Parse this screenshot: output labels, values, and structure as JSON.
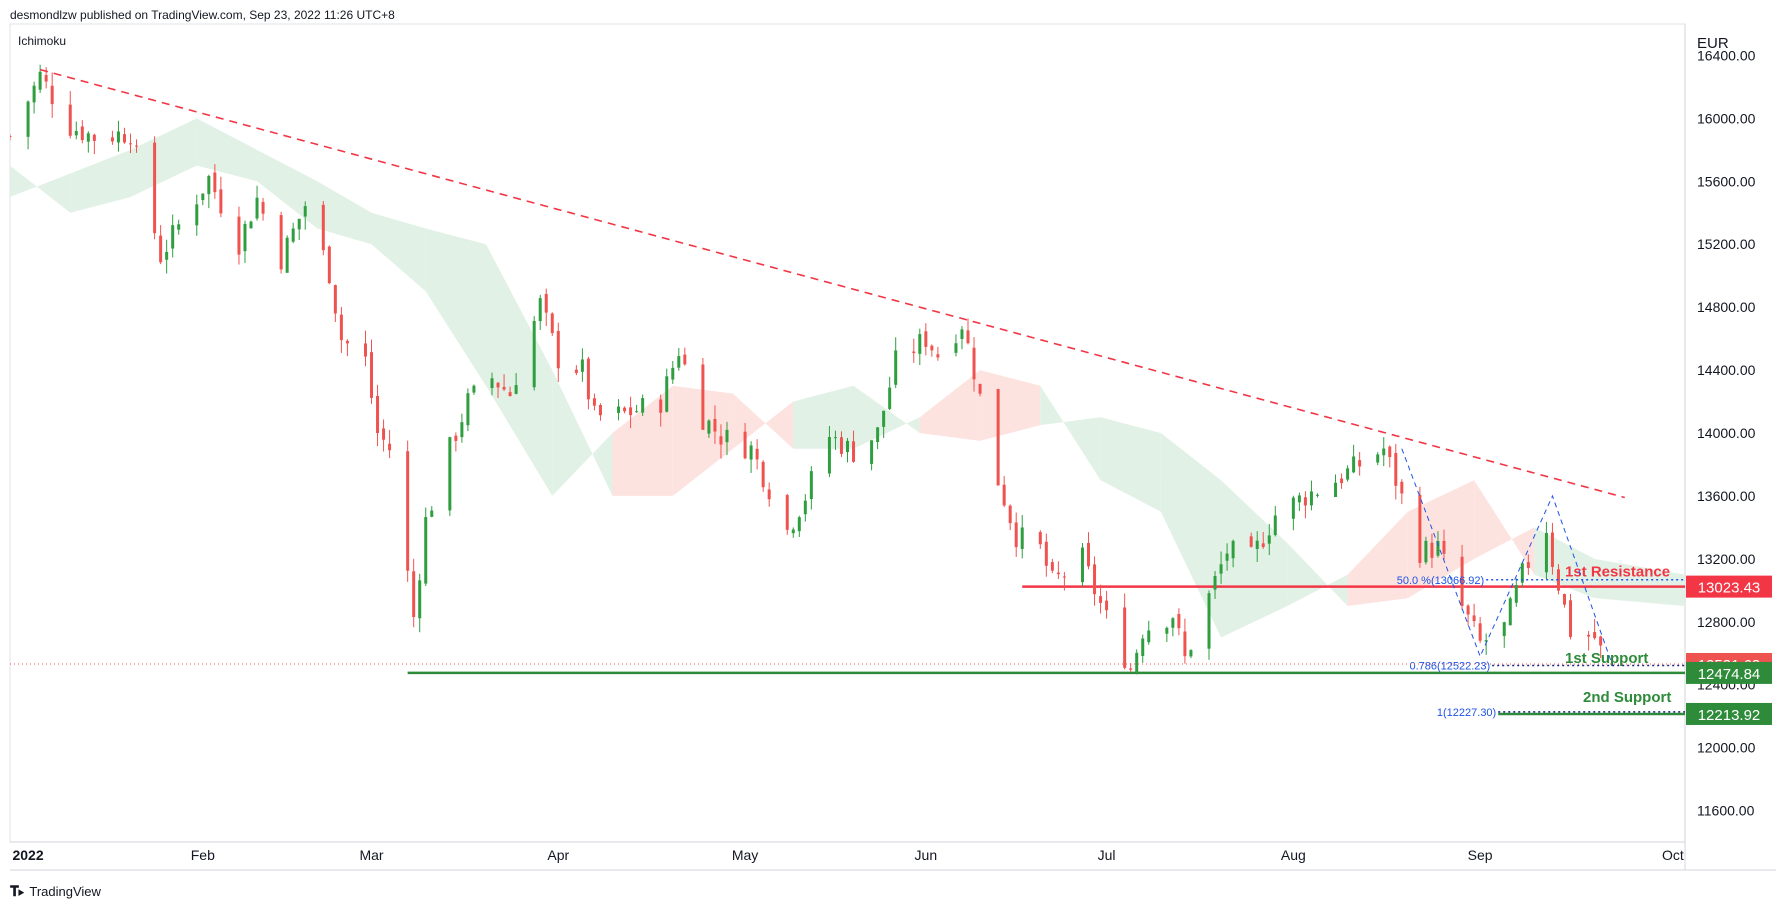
{
  "header": {
    "published_line": "desmondlzw published on TradingView.com, Sep 23, 2022 11:26 UTC+8",
    "indicator": "Ichimoku",
    "currency": "EUR"
  },
  "footer": {
    "brand": "TradingView"
  },
  "colors": {
    "up": "#26a69a",
    "up_candle": "#2e9e3f",
    "down": "#ef5350",
    "resistance": "#f23645",
    "support": "#2e8b3a",
    "fib": "#1e53e5",
    "cloud_bull": "#dff0e3",
    "cloud_bear": "#fde0dd"
  },
  "chart_data": {
    "type": "candlestick",
    "title": "",
    "y_unit": "EUR",
    "ylim": [
      11400,
      16600
    ],
    "y_ticks": [
      11600,
      12000,
      12400,
      12800,
      13200,
      13600,
      14000,
      14400,
      14800,
      15200,
      15600,
      16000,
      16400
    ],
    "y_tick_labels": [
      "11600.00",
      "12000.00",
      "12400.00",
      "12800.00",
      "13200.00",
      "13600.00",
      "14000.00",
      "14400.00",
      "14800.00",
      "15200.00",
      "15600.00",
      "16000.00",
      "16400.00"
    ],
    "x_tick_labels": [
      "2022",
      "Feb",
      "Mar",
      "Apr",
      "May",
      "Jun",
      "Jul",
      "Aug",
      "Sep",
      "Oct"
    ],
    "x_tick_dates": [
      "2022-01-03",
      "2022-02-01",
      "2022-03-01",
      "2022-04-01",
      "2022-05-02",
      "2022-06-01",
      "2022-07-01",
      "2022-08-01",
      "2022-09-01",
      "2022-10-03"
    ],
    "x_range": [
      "2021-12-31",
      "2022-10-05"
    ],
    "price_path": [
      [
        "2021-12-31",
        15884
      ],
      [
        "2022-01-05",
        16271
      ],
      [
        "2022-01-10",
        15950
      ],
      [
        "2022-01-14",
        15880
      ],
      [
        "2022-01-20",
        15910
      ],
      [
        "2022-01-25",
        15123
      ],
      [
        "2022-01-28",
        15318
      ],
      [
        "2022-02-02",
        15620
      ],
      [
        "2022-02-07",
        15210
      ],
      [
        "2022-02-10",
        15490
      ],
      [
        "2022-02-14",
        15110
      ],
      [
        "2022-02-18",
        15450
      ],
      [
        "2022-02-22",
        15020
      ],
      [
        "2022-02-24",
        14600
      ],
      [
        "2022-02-28",
        14460
      ],
      [
        "2022-03-02",
        14000
      ],
      [
        "2022-03-04",
        13900
      ],
      [
        "2022-03-07",
        13100
      ],
      [
        "2022-03-08",
        12830
      ],
      [
        "2022-03-10",
        13440
      ],
      [
        "2022-03-14",
        13900
      ],
      [
        "2022-03-17",
        14200
      ],
      [
        "2022-03-21",
        14350
      ],
      [
        "2022-03-24",
        14250
      ],
      [
        "2022-03-29",
        14820
      ],
      [
        "2022-04-01",
        14470
      ],
      [
        "2022-04-05",
        14400
      ],
      [
        "2022-04-07",
        14100
      ],
      [
        "2022-04-12",
        14120
      ],
      [
        "2022-04-18",
        14200
      ],
      [
        "2022-04-21",
        14530
      ],
      [
        "2022-04-25",
        14100
      ],
      [
        "2022-04-28",
        13980
      ],
      [
        "2022-05-03",
        13900
      ],
      [
        "2022-05-06",
        13650
      ],
      [
        "2022-05-09",
        13380
      ],
      [
        "2022-05-12",
        13600
      ],
      [
        "2022-05-16",
        13980
      ],
      [
        "2022-05-20",
        13880
      ],
      [
        "2022-05-24",
        14000
      ],
      [
        "2022-05-27",
        14450
      ],
      [
        "2022-06-01",
        14600
      ],
      [
        "2022-06-03",
        14500
      ],
      [
        "2022-06-07",
        14700
      ],
      [
        "2022-06-09",
        14400
      ],
      [
        "2022-06-13",
        13700
      ],
      [
        "2022-06-16",
        13350
      ],
      [
        "2022-06-20",
        13260
      ],
      [
        "2022-06-22",
        13050
      ],
      [
        "2022-06-24",
        13100
      ],
      [
        "2022-06-27",
        13200
      ],
      [
        "2022-06-29",
        13000
      ],
      [
        "2022-07-01",
        12820
      ],
      [
        "2022-07-05",
        12500
      ],
      [
        "2022-07-07",
        12750
      ],
      [
        "2022-07-12",
        12850
      ],
      [
        "2022-07-14",
        12560
      ],
      [
        "2022-07-18",
        12960
      ],
      [
        "2022-07-21",
        13250
      ],
      [
        "2022-07-25",
        13200
      ],
      [
        "2022-07-29",
        13480
      ],
      [
        "2022-08-03",
        13600
      ],
      [
        "2022-08-08",
        13700
      ],
      [
        "2022-08-12",
        13800
      ],
      [
        "2022-08-16",
        13900
      ],
      [
        "2022-08-18",
        13700
      ],
      [
        "2022-08-22",
        13250
      ],
      [
        "2022-08-25",
        13270
      ],
      [
        "2022-08-29",
        12890
      ],
      [
        "2022-09-01",
        12660
      ],
      [
        "2022-09-05",
        12760
      ],
      [
        "2022-09-08",
        13100
      ],
      [
        "2022-09-12",
        13400
      ],
      [
        "2022-09-13",
        13190
      ],
      [
        "2022-09-16",
        12740
      ],
      [
        "2022-09-20",
        12700
      ],
      [
        "2022-09-22",
        12531
      ]
    ],
    "cloud": [
      [
        "2021-12-31",
        15500,
        15700
      ],
      [
        "2022-01-10",
        15650,
        15400
      ],
      [
        "2022-01-20",
        15800,
        15500
      ],
      [
        "2022-01-31",
        16000,
        15700
      ],
      [
        "2022-02-10",
        15800,
        15600
      ],
      [
        "2022-02-20",
        15600,
        15300
      ],
      [
        "2022-03-01",
        15400,
        15200
      ],
      [
        "2022-03-10",
        15300,
        14900
      ],
      [
        "2022-03-20",
        15200,
        14300
      ],
      [
        "2022-03-31",
        14400,
        13600
      ],
      [
        "2022-04-10",
        13600,
        14000
      ],
      [
        "2022-04-20",
        13600,
        14300
      ],
      [
        "2022-04-30",
        13900,
        14250
      ],
      [
        "2022-05-10",
        14200,
        13900
      ],
      [
        "2022-05-20",
        14300,
        13900
      ],
      [
        "2022-05-31",
        14000,
        14100
      ],
      [
        "2022-06-10",
        13950,
        14400
      ],
      [
        "2022-06-20",
        14050,
        14300
      ],
      [
        "2022-06-30",
        14100,
        13700
      ],
      [
        "2022-07-10",
        14000,
        13500
      ],
      [
        "2022-07-20",
        13700,
        12700
      ],
      [
        "2022-07-31",
        13300,
        12900
      ],
      [
        "2022-08-10",
        12900,
        13100
      ],
      [
        "2022-08-20",
        12950,
        13500
      ],
      [
        "2022-08-31",
        13200,
        13700
      ],
      [
        "2022-09-10",
        13400,
        13100
      ],
      [
        "2022-09-20",
        13200,
        12950
      ],
      [
        "2022-10-05",
        13100,
        12900
      ]
    ],
    "trendline": {
      "from": [
        "2022-01-05",
        16310
      ],
      "to": [
        "2022-09-25",
        13590
      ],
      "style": "dashed"
    },
    "fib_pattern": [
      [
        "2022-08-19",
        13900
      ],
      [
        "2022-09-01",
        12580
      ],
      [
        "2022-09-13",
        13600
      ],
      [
        "2022-09-23",
        12520
      ]
    ],
    "levels": [
      {
        "name": "1st Resistance",
        "value": 13023.43,
        "label": "13023.43",
        "from": "2022-06-17",
        "style": "solid",
        "color": "#f23645"
      },
      {
        "name": "1st Support",
        "value": 12474.84,
        "label": "12474.84",
        "from": "2022-03-07",
        "style": "solid",
        "color": "#2e8b3a"
      },
      {
        "name": "2nd Support",
        "value": 12213.92,
        "label": "12213.92",
        "from": "2022-09-04",
        "style": "solid",
        "color": "#2e8b3a"
      }
    ],
    "fib_levels": [
      {
        "label": "50.0 %(13066.92)",
        "value": 13066.92
      },
      {
        "label": "0.786(12522.23)",
        "value": 12522.23
      },
      {
        "label": "1(12227.30)",
        "value": 12227.3
      }
    ],
    "last_price": {
      "value": 12531.63,
      "label": "12531.63"
    },
    "grid": false
  }
}
